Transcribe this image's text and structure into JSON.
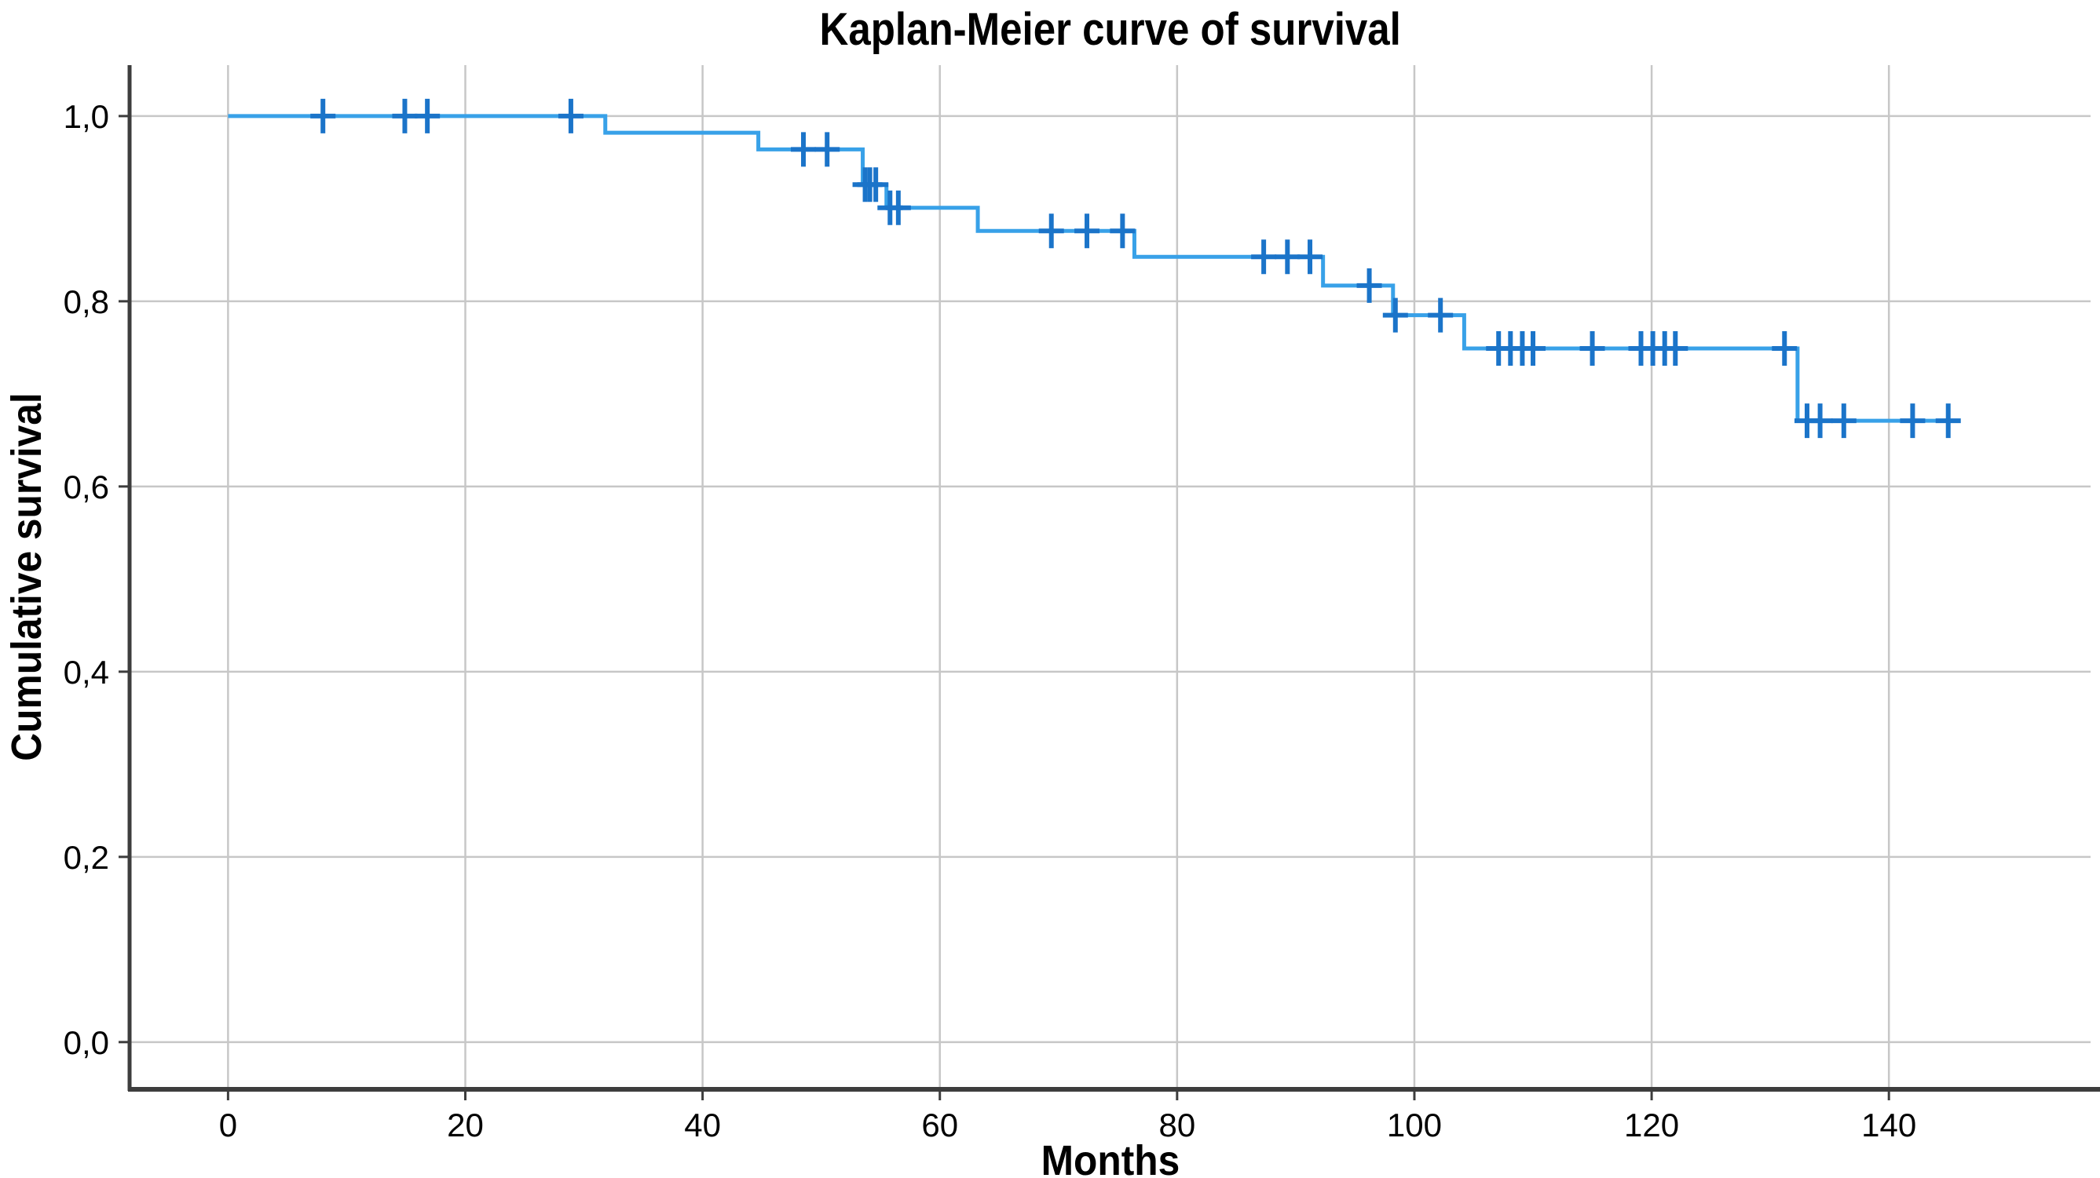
{
  "figure": {
    "title": "Kaplan-Meier curve of survival",
    "xlabel": "Months",
    "ylabel": "Cumulative survival"
  },
  "chart_data": {
    "type": "line",
    "subtype": "kaplan-meier-step-function",
    "title": "Kaplan-Meier curve of survival",
    "xlabel": "Months",
    "ylabel": "Cumulative survival",
    "legend": "none",
    "grid": "on",
    "xlim": [
      -8.3,
      157.0
    ],
    "ylim": [
      -0.051,
      1.055
    ],
    "x_ticks": [
      {
        "value": 0,
        "label": "0"
      },
      {
        "value": 20,
        "label": "20"
      },
      {
        "value": 40,
        "label": "40"
      },
      {
        "value": 60,
        "label": "60"
      },
      {
        "value": 80,
        "label": "80"
      },
      {
        "value": 100,
        "label": "100"
      },
      {
        "value": 120,
        "label": "120"
      },
      {
        "value": 140,
        "label": "140"
      }
    ],
    "y_ticks": [
      {
        "value": 0.0,
        "label": "0,0"
      },
      {
        "value": 0.2,
        "label": "0,2"
      },
      {
        "value": 0.4,
        "label": "0,4"
      },
      {
        "value": 0.6,
        "label": "0,6"
      },
      {
        "value": 0.8,
        "label": "0,8"
      },
      {
        "value": 1.0,
        "label": "1,0"
      }
    ],
    "survival_steps": [
      [
        0,
        1.0
      ],
      [
        31.8,
        0.982
      ],
      [
        44.7,
        0.964
      ],
      [
        53.5,
        0.926
      ],
      [
        55.5,
        0.901
      ],
      [
        63.2,
        0.876
      ],
      [
        76.4,
        0.848
      ],
      [
        92.3,
        0.817
      ],
      [
        98.2,
        0.785
      ],
      [
        104.2,
        0.749
      ],
      [
        132.3,
        0.671
      ]
    ],
    "end_time": 145.8,
    "censor_marks": [
      [
        8.0,
        1.0
      ],
      [
        14.9,
        1.0
      ],
      [
        16.8,
        1.0
      ],
      [
        28.9,
        1.0
      ],
      [
        48.5,
        0.964
      ],
      [
        50.5,
        0.964
      ],
      [
        53.7,
        0.926
      ],
      [
        54.1,
        0.926
      ],
      [
        54.6,
        0.926
      ],
      [
        55.8,
        0.901
      ],
      [
        56.5,
        0.901
      ],
      [
        69.4,
        0.876
      ],
      [
        72.4,
        0.876
      ],
      [
        75.4,
        0.876
      ],
      [
        87.3,
        0.848
      ],
      [
        89.3,
        0.848
      ],
      [
        91.2,
        0.848
      ],
      [
        96.2,
        0.817
      ],
      [
        98.4,
        0.785
      ],
      [
        102.2,
        0.785
      ],
      [
        107.1,
        0.749
      ],
      [
        108.1,
        0.749
      ],
      [
        109.1,
        0.749
      ],
      [
        110.0,
        0.749
      ],
      [
        115.0,
        0.749
      ],
      [
        119.1,
        0.749
      ],
      [
        120.1,
        0.749
      ],
      [
        121.1,
        0.749
      ],
      [
        122.0,
        0.749
      ],
      [
        131.2,
        0.749
      ],
      [
        133.1,
        0.671
      ],
      [
        134.2,
        0.671
      ],
      [
        136.2,
        0.671
      ],
      [
        142.0,
        0.671
      ],
      [
        145.0,
        0.671
      ]
    ],
    "colors": {
      "curve": "#38a1e8",
      "censor": "#1b74c9",
      "grid": "#c7c7c7",
      "axis": "#3d3d3d",
      "text": "#000000",
      "background": "#ffffff"
    }
  }
}
